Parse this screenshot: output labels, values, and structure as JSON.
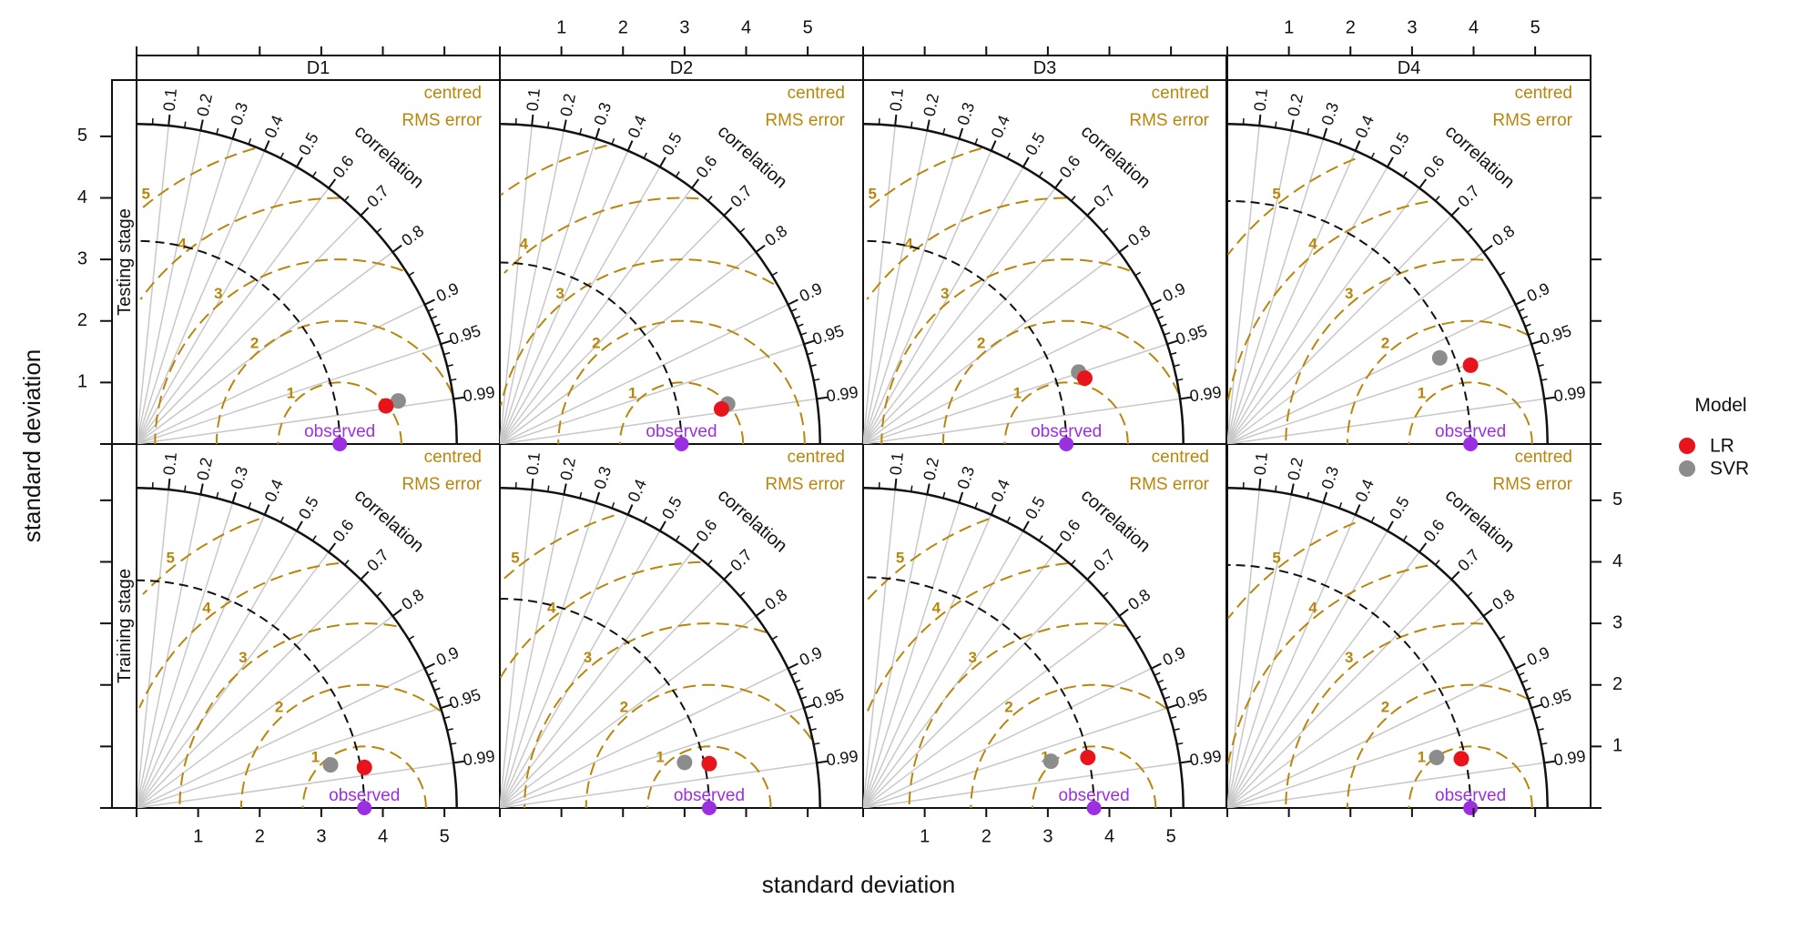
{
  "chart_data": {
    "type": "scatter",
    "subtype": "taylor-diagram",
    "xlabel": "standard deviation",
    "ylabel": "standard deviation",
    "panel_columns": [
      "D1",
      "D2",
      "D3",
      "D4"
    ],
    "panel_rows": [
      "Testing stage",
      "Training stage"
    ],
    "std_range": [
      0,
      5.2
    ],
    "sd_ticks": [
      1,
      2,
      3,
      4,
      5
    ],
    "correlation_label": "correlation",
    "correlation_ticks": [
      "0.1",
      "0.2",
      "0.3",
      "0.4",
      "0.5",
      "0.6",
      "0.7",
      "0.8",
      "0.9",
      "0.95",
      "0.99"
    ],
    "rms_label_line1": "centred",
    "rms_label_line2": "RMS error",
    "rms_contours": [
      "1",
      "2",
      "3",
      "4",
      "5"
    ],
    "observed_label": "observed",
    "legend_title": "Model",
    "legend_position": "right",
    "series": [
      {
        "name": "LR",
        "color": "#e8141c"
      },
      {
        "name": "SVR",
        "color": "#8c8c8c"
      }
    ],
    "panels": [
      {
        "row": 0,
        "col": 0,
        "obs": 3.3,
        "points": {
          "LR": [
            4.05,
            0.62
          ],
          "SVR": [
            4.25,
            0.7
          ]
        }
      },
      {
        "row": 0,
        "col": 1,
        "obs": 2.95,
        "points": {
          "LR": [
            3.6,
            0.57
          ],
          "SVR": [
            3.7,
            0.65
          ]
        }
      },
      {
        "row": 0,
        "col": 2,
        "obs": 3.3,
        "points": {
          "LR": [
            3.6,
            1.07
          ],
          "SVR": [
            3.5,
            1.17
          ]
        }
      },
      {
        "row": 0,
        "col": 3,
        "obs": 3.95,
        "points": {
          "LR": [
            3.95,
            1.28
          ],
          "SVR": [
            3.45,
            1.4
          ]
        }
      },
      {
        "row": 1,
        "col": 0,
        "obs": 3.7,
        "points": {
          "LR": [
            3.7,
            0.66
          ],
          "SVR": [
            3.15,
            0.7
          ]
        }
      },
      {
        "row": 1,
        "col": 1,
        "obs": 3.4,
        "points": {
          "LR": [
            3.4,
            0.72
          ],
          "SVR": [
            3.0,
            0.74
          ]
        }
      },
      {
        "row": 1,
        "col": 2,
        "obs": 3.75,
        "points": {
          "LR": [
            3.65,
            0.82
          ],
          "SVR": [
            3.05,
            0.76
          ]
        }
      },
      {
        "row": 1,
        "col": 3,
        "obs": 3.95,
        "points": {
          "LR": [
            3.8,
            0.8
          ],
          "SVR": [
            3.4,
            0.82
          ]
        }
      }
    ]
  },
  "colors": {
    "rms": "#b8860b",
    "observed": "#9b30e0",
    "corr_lines": "#c8c8c8"
  }
}
